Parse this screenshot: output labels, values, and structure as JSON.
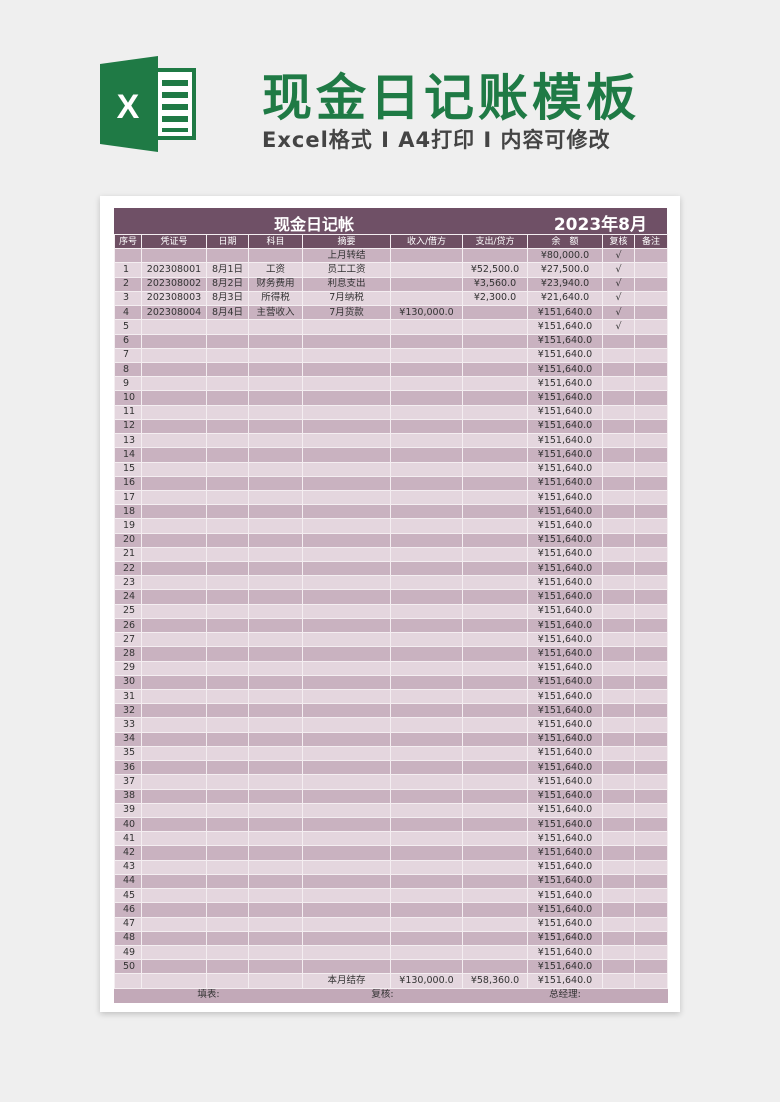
{
  "banner": {
    "title": "现金日记账模板",
    "subtitle": "Excel格式 I A4打印 I 内容可修改",
    "logo_letter": "X"
  },
  "sheet": {
    "title": "现金日记帐",
    "period": "2023年8月",
    "headers": [
      "序号",
      "凭证号",
      "日期",
      "科目",
      "摘要",
      "收入/借方",
      "支出/贷方",
      "余　额",
      "复核",
      "备注"
    ],
    "opening": {
      "summary": "上月转结",
      "balance": "¥80,000.0",
      "check": "√"
    },
    "rows": [
      [
        "1",
        "202308001",
        "8月1日",
        "工资",
        "员工工资",
        "",
        "¥52,500.0",
        "¥27,500.0",
        "√",
        ""
      ],
      [
        "2",
        "202308002",
        "8月2日",
        "财务费用",
        "利息支出",
        "",
        "¥3,560.0",
        "¥23,940.0",
        "√",
        ""
      ],
      [
        "3",
        "202308003",
        "8月3日",
        "所得税",
        "7月纳税",
        "",
        "¥2,300.0",
        "¥21,640.0",
        "√",
        ""
      ],
      [
        "4",
        "202308004",
        "8月4日",
        "主营收入",
        "7月货款",
        "¥130,000.0",
        "",
        "¥151,640.0",
        "√",
        ""
      ],
      [
        "5",
        "",
        "",
        "",
        "",
        "",
        "",
        "¥151,640.0",
        "√",
        ""
      ],
      [
        "6",
        "",
        "",
        "",
        "",
        "",
        "",
        "¥151,640.0",
        "",
        ""
      ],
      [
        "7",
        "",
        "",
        "",
        "",
        "",
        "",
        "¥151,640.0",
        "",
        ""
      ],
      [
        "8",
        "",
        "",
        "",
        "",
        "",
        "",
        "¥151,640.0",
        "",
        ""
      ],
      [
        "9",
        "",
        "",
        "",
        "",
        "",
        "",
        "¥151,640.0",
        "",
        ""
      ],
      [
        "10",
        "",
        "",
        "",
        "",
        "",
        "",
        "¥151,640.0",
        "",
        ""
      ],
      [
        "11",
        "",
        "",
        "",
        "",
        "",
        "",
        "¥151,640.0",
        "",
        ""
      ],
      [
        "12",
        "",
        "",
        "",
        "",
        "",
        "",
        "¥151,640.0",
        "",
        ""
      ],
      [
        "13",
        "",
        "",
        "",
        "",
        "",
        "",
        "¥151,640.0",
        "",
        ""
      ],
      [
        "14",
        "",
        "",
        "",
        "",
        "",
        "",
        "¥151,640.0",
        "",
        ""
      ],
      [
        "15",
        "",
        "",
        "",
        "",
        "",
        "",
        "¥151,640.0",
        "",
        ""
      ],
      [
        "16",
        "",
        "",
        "",
        "",
        "",
        "",
        "¥151,640.0",
        "",
        ""
      ],
      [
        "17",
        "",
        "",
        "",
        "",
        "",
        "",
        "¥151,640.0",
        "",
        ""
      ],
      [
        "18",
        "",
        "",
        "",
        "",
        "",
        "",
        "¥151,640.0",
        "",
        ""
      ],
      [
        "19",
        "",
        "",
        "",
        "",
        "",
        "",
        "¥151,640.0",
        "",
        ""
      ],
      [
        "20",
        "",
        "",
        "",
        "",
        "",
        "",
        "¥151,640.0",
        "",
        ""
      ],
      [
        "21",
        "",
        "",
        "",
        "",
        "",
        "",
        "¥151,640.0",
        "",
        ""
      ],
      [
        "22",
        "",
        "",
        "",
        "",
        "",
        "",
        "¥151,640.0",
        "",
        ""
      ],
      [
        "23",
        "",
        "",
        "",
        "",
        "",
        "",
        "¥151,640.0",
        "",
        ""
      ],
      [
        "24",
        "",
        "",
        "",
        "",
        "",
        "",
        "¥151,640.0",
        "",
        ""
      ],
      [
        "25",
        "",
        "",
        "",
        "",
        "",
        "",
        "¥151,640.0",
        "",
        ""
      ],
      [
        "26",
        "",
        "",
        "",
        "",
        "",
        "",
        "¥151,640.0",
        "",
        ""
      ],
      [
        "27",
        "",
        "",
        "",
        "",
        "",
        "",
        "¥151,640.0",
        "",
        ""
      ],
      [
        "28",
        "",
        "",
        "",
        "",
        "",
        "",
        "¥151,640.0",
        "",
        ""
      ],
      [
        "29",
        "",
        "",
        "",
        "",
        "",
        "",
        "¥151,640.0",
        "",
        ""
      ],
      [
        "30",
        "",
        "",
        "",
        "",
        "",
        "",
        "¥151,640.0",
        "",
        ""
      ],
      [
        "31",
        "",
        "",
        "",
        "",
        "",
        "",
        "¥151,640.0",
        "",
        ""
      ],
      [
        "32",
        "",
        "",
        "",
        "",
        "",
        "",
        "¥151,640.0",
        "",
        ""
      ],
      [
        "33",
        "",
        "",
        "",
        "",
        "",
        "",
        "¥151,640.0",
        "",
        ""
      ],
      [
        "34",
        "",
        "",
        "",
        "",
        "",
        "",
        "¥151,640.0",
        "",
        ""
      ],
      [
        "35",
        "",
        "",
        "",
        "",
        "",
        "",
        "¥151,640.0",
        "",
        ""
      ],
      [
        "36",
        "",
        "",
        "",
        "",
        "",
        "",
        "¥151,640.0",
        "",
        ""
      ],
      [
        "37",
        "",
        "",
        "",
        "",
        "",
        "",
        "¥151,640.0",
        "",
        ""
      ],
      [
        "38",
        "",
        "",
        "",
        "",
        "",
        "",
        "¥151,640.0",
        "",
        ""
      ],
      [
        "39",
        "",
        "",
        "",
        "",
        "",
        "",
        "¥151,640.0",
        "",
        ""
      ],
      [
        "40",
        "",
        "",
        "",
        "",
        "",
        "",
        "¥151,640.0",
        "",
        ""
      ],
      [
        "41",
        "",
        "",
        "",
        "",
        "",
        "",
        "¥151,640.0",
        "",
        ""
      ],
      [
        "42",
        "",
        "",
        "",
        "",
        "",
        "",
        "¥151,640.0",
        "",
        ""
      ],
      [
        "43",
        "",
        "",
        "",
        "",
        "",
        "",
        "¥151,640.0",
        "",
        ""
      ],
      [
        "44",
        "",
        "",
        "",
        "",
        "",
        "",
        "¥151,640.0",
        "",
        ""
      ],
      [
        "45",
        "",
        "",
        "",
        "",
        "",
        "",
        "¥151,640.0",
        "",
        ""
      ],
      [
        "46",
        "",
        "",
        "",
        "",
        "",
        "",
        "¥151,640.0",
        "",
        ""
      ],
      [
        "47",
        "",
        "",
        "",
        "",
        "",
        "",
        "¥151,640.0",
        "",
        ""
      ],
      [
        "48",
        "",
        "",
        "",
        "",
        "",
        "",
        "¥151,640.0",
        "",
        ""
      ],
      [
        "49",
        "",
        "",
        "",
        "",
        "",
        "",
        "¥151,640.0",
        "",
        ""
      ],
      [
        "50",
        "",
        "",
        "",
        "",
        "",
        "",
        "¥151,640.0",
        "",
        ""
      ]
    ],
    "totals": {
      "label": "本月结存",
      "income": "¥130,000.0",
      "expense": "¥58,360.0",
      "balance": "¥151,640.0"
    },
    "signatures": {
      "preparer": "填表:",
      "reviewer": "复核:",
      "manager": "总经理:"
    }
  },
  "colors": {
    "brand": "#1f7a45",
    "header": "#6e4f63",
    "row_dark": "#c9b2c0",
    "row_light": "#e4d6de"
  }
}
